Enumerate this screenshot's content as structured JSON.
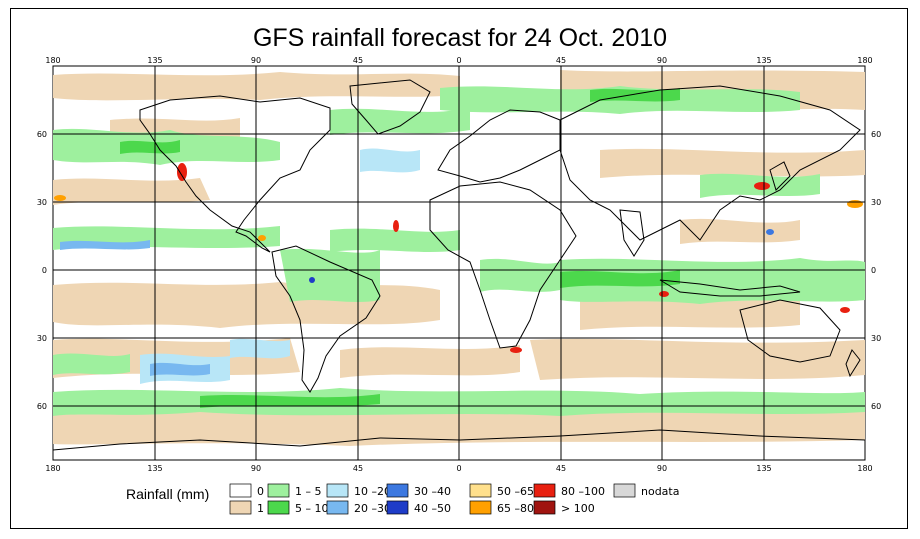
{
  "title": "GFS rainfall forecast for 24 Oct. 2010",
  "axes": {
    "lon_ticks": [
      "180",
      "135",
      "90",
      "45",
      "0",
      "45",
      "90",
      "135",
      "180"
    ],
    "lat_ticks": [
      "60",
      "30",
      "0",
      "30",
      "60"
    ]
  },
  "legend": {
    "label": "Rainfall (mm)",
    "entries": [
      {
        "label": "0",
        "color": "#ffffff"
      },
      {
        "label": "1",
        "color": "#efd6b4"
      },
      {
        "label": "1 – 5",
        "color": "#9ef09e"
      },
      {
        "label": "5 – 10",
        "color": "#4cd84c"
      },
      {
        "label": "10 –20",
        "color": "#b8e6f7"
      },
      {
        "label": "20 –30",
        "color": "#78b8f0"
      },
      {
        "label": "30 –40",
        "color": "#3c78e0"
      },
      {
        "label": "40 –50",
        "color": "#1e3cc8"
      },
      {
        "label": "50 –65",
        "color": "#ffe08c"
      },
      {
        "label": "65 –80",
        "color": "#ffa000"
      },
      {
        "label": "80 –100",
        "color": "#e82010"
      },
      {
        "label": "> 100",
        "color": "#a01410"
      },
      {
        "label": "nodata",
        "color": "#d8d8d8"
      }
    ]
  }
}
